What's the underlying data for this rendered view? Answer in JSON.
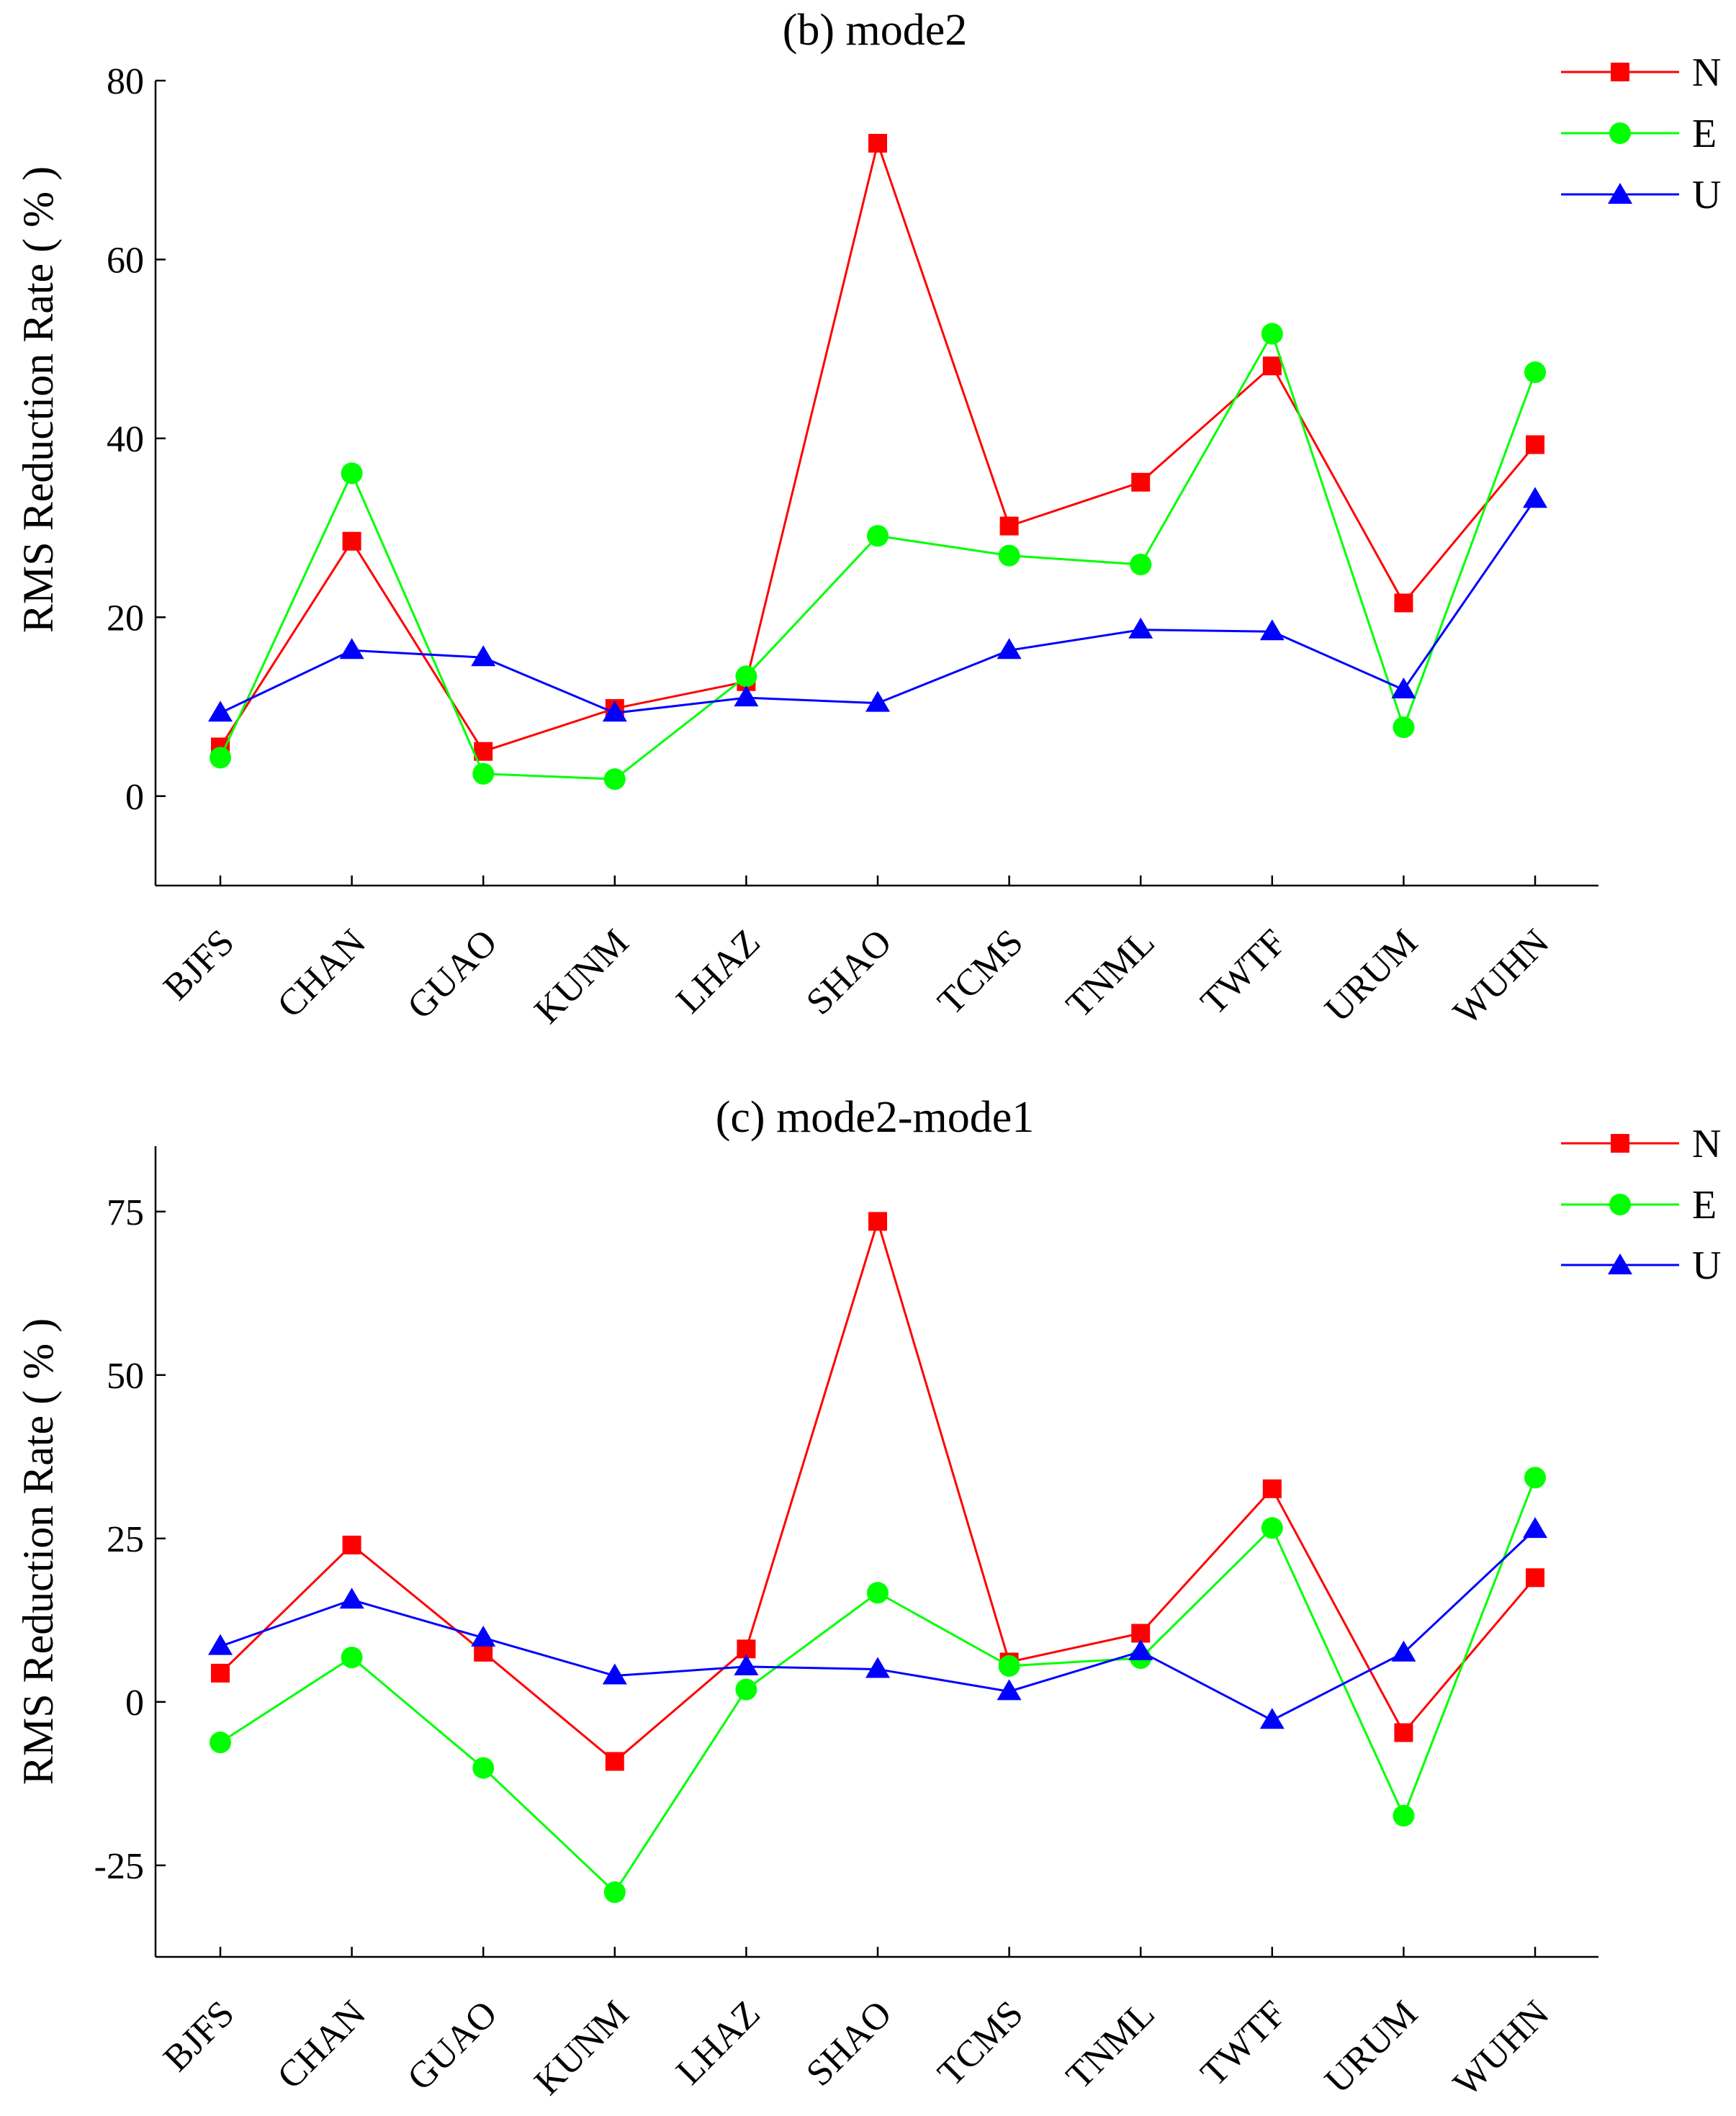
{
  "chart_data": [
    {
      "type": "line",
      "title": "(b) mode2",
      "xlabel": "",
      "ylabel": "RMS Reduction Rate ( % )",
      "categories": [
        "BJFS",
        "CHAN",
        "GUAO",
        "KUNM",
        "LHAZ",
        "SHAO",
        "TCMS",
        "TNML",
        "TWTF",
        "URUM",
        "WUHN"
      ],
      "ylim": [
        -10,
        80
      ],
      "yticks": [
        0,
        20,
        40,
        60,
        80
      ],
      "ytick_labels": [
        "0",
        "20",
        "40",
        "60",
        "80"
      ],
      "grid": false,
      "legend_position": "top-right",
      "series": [
        {
          "name": "N",
          "color": "#ff0000",
          "marker": "square",
          "values": [
            5.5,
            28.5,
            5.0,
            9.8,
            12.8,
            73.0,
            30.2,
            35.1,
            48.1,
            21.6,
            39.3
          ]
        },
        {
          "name": "E",
          "color": "#00ff00",
          "marker": "circle",
          "values": [
            4.3,
            36.1,
            2.5,
            1.9,
            13.4,
            29.1,
            26.9,
            25.9,
            51.7,
            7.7,
            47.4
          ]
        },
        {
          "name": "U",
          "color": "#0000ff",
          "marker": "triangle",
          "values": [
            9.3,
            16.3,
            15.5,
            9.3,
            11.0,
            10.4,
            16.3,
            18.6,
            18.4,
            11.9,
            33.2
          ]
        }
      ]
    },
    {
      "type": "line",
      "title": "(c) mode2-mode1",
      "xlabel": "",
      "ylabel": "RMS Reduction Rate ( % )",
      "categories": [
        "BJFS",
        "CHAN",
        "GUAO",
        "KUNM",
        "LHAZ",
        "SHAO",
        "TCMS",
        "TNML",
        "TWTF",
        "URUM",
        "WUHN"
      ],
      "ylim": [
        -39,
        85
      ],
      "yticks": [
        -25,
        0,
        25,
        50,
        75
      ],
      "ytick_labels": [
        "-25",
        "0",
        "25",
        "50",
        "75"
      ],
      "grid": false,
      "legend_position": "top-right",
      "series": [
        {
          "name": "N",
          "color": "#ff0000",
          "marker": "square",
          "values": [
            4.4,
            24.0,
            7.6,
            -9.1,
            8.1,
            73.5,
            6.1,
            10.5,
            32.6,
            -4.7,
            19.0
          ]
        },
        {
          "name": "E",
          "color": "#00ff00",
          "marker": "circle",
          "values": [
            -6.2,
            6.8,
            -10.1,
            -29.1,
            1.9,
            16.7,
            5.5,
            6.7,
            26.6,
            -17.4,
            34.3
          ]
        },
        {
          "name": "U",
          "color": "#0000ff",
          "marker": "triangle",
          "values": [
            8.5,
            15.6,
            9.8,
            4.0,
            5.4,
            5.0,
            1.6,
            7.7,
            -2.8,
            7.5,
            26.4
          ]
        }
      ]
    }
  ]
}
